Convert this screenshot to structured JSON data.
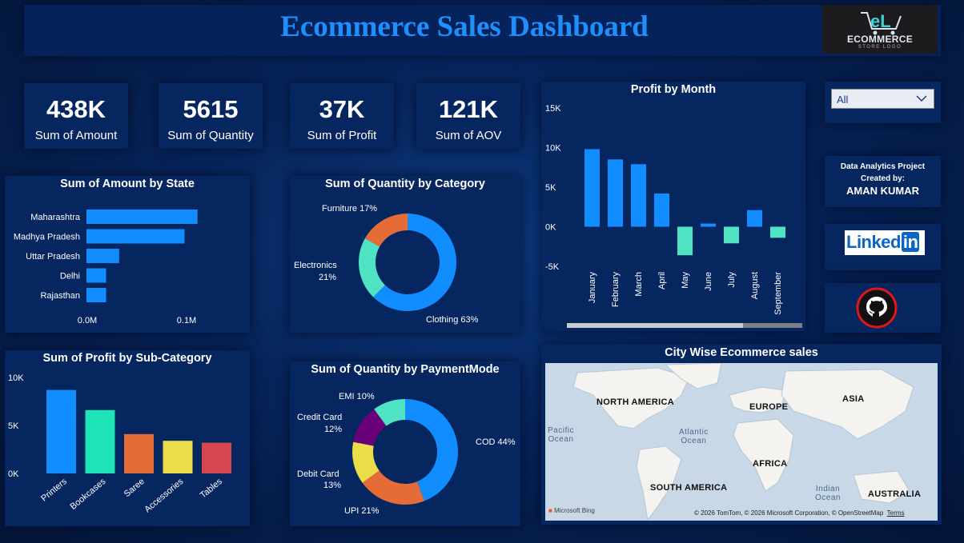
{
  "header": {
    "title": "Ecommerce Sales Dashboard",
    "logo_main": "ECOMMERCE",
    "logo_sub": "STORE LOGO",
    "logo_mark": "eL"
  },
  "kpis": [
    {
      "value": "438K",
      "label": "Sum of Amount"
    },
    {
      "value": "5615",
      "label": "Sum of Quantity"
    },
    {
      "value": "37K",
      "label": "Sum of Profit"
    },
    {
      "value": "121K",
      "label": "Sum of AOV"
    }
  ],
  "filter": {
    "selected": "All"
  },
  "info": {
    "line1": "Data Analytics Project",
    "line2": "Created by:",
    "line3": "AMAN KUMAR"
  },
  "linkedin": {
    "text": "Linked",
    "in": "in"
  },
  "colors": {
    "blue": "#118dff",
    "teal": "#1ee3b6",
    "orange": "#e66c37",
    "yellow": "#eadd49",
    "red": "#d64550",
    "purple": "#6b007b",
    "mint": "#4fe3c4"
  },
  "amount_by_state": {
    "title": "Sum of Amount by State",
    "type": "bar",
    "categories": [
      "Maharashtra",
      "Madhya Pradesh",
      "Uttar Pradesh",
      "Delhi",
      "Rajasthan"
    ],
    "values": [
      0.102,
      0.09,
      0.03,
      0.018,
      0.018
    ],
    "ticks": [
      "0.0M",
      "0.1M"
    ],
    "xlim": [
      0,
      0.125
    ]
  },
  "qty_by_category": {
    "title": "Sum of Quantity by Category",
    "type": "pie",
    "slices": [
      {
        "name": "Clothing",
        "value": 63,
        "label": "Clothing 63%"
      },
      {
        "name": "Electronics",
        "value": 21,
        "label1": "Electronics",
        "label2": "21%"
      },
      {
        "name": "Furniture",
        "value": 17,
        "label": "Furniture 17%"
      }
    ]
  },
  "profit_by_month": {
    "title": "Profit by Month",
    "type": "bar",
    "categories": [
      "January",
      "February",
      "March",
      "April",
      "May",
      "June",
      "July",
      "August",
      "September"
    ],
    "values": [
      9800,
      8500,
      7900,
      4200,
      -3600,
      400,
      -2100,
      2100,
      -1400
    ],
    "ticks": [
      "15K",
      "10K",
      "5K",
      "0K",
      "-5K"
    ],
    "ylim": [
      -5000,
      15000
    ]
  },
  "profit_by_subcategory": {
    "title": "Sum of Profit by Sub-Category",
    "type": "bar",
    "categories": [
      "Printers",
      "Bookcases",
      "Saree",
      "Accessories",
      "Tables"
    ],
    "values": [
      8700,
      6600,
      4100,
      3400,
      3200
    ],
    "ticks": [
      "10K",
      "5K",
      "0K"
    ],
    "ylim": [
      0,
      10000
    ]
  },
  "qty_by_payment": {
    "title": "Sum of Quantity by PaymentMode",
    "type": "pie",
    "slices": [
      {
        "name": "COD",
        "value": 44,
        "label": "COD 44%"
      },
      {
        "name": "UPI",
        "value": 21,
        "label": "UPI 21%"
      },
      {
        "name": "Debit Card",
        "value": 13,
        "label1": "Debit Card",
        "label2": "13%"
      },
      {
        "name": "Credit Card",
        "value": 12,
        "label1": "Credit Card",
        "label2": "12%"
      },
      {
        "name": "EMI",
        "value": 10,
        "label": "EMI 10%"
      }
    ]
  },
  "map": {
    "title": "City Wise Ecommerce sales",
    "labels": {
      "na": "NORTH AMERICA",
      "eu": "EUROPE",
      "asia": "ASIA",
      "af": "AFRICA",
      "sa": "SOUTH AMERICA",
      "au": "AUSTRALIA"
    },
    "oceans": {
      "pacific1": "Pacific",
      "pacific2": "Ocean",
      "atlantic1": "Atlantic",
      "atlantic2": "Ocean",
      "indian1": "Indian",
      "indian2": "Ocean"
    },
    "bing": "Microsoft Bing",
    "credits": "© 2026 TomTom, © 2026 Microsoft Corporation, © OpenStreetMap",
    "terms": "Terms"
  }
}
